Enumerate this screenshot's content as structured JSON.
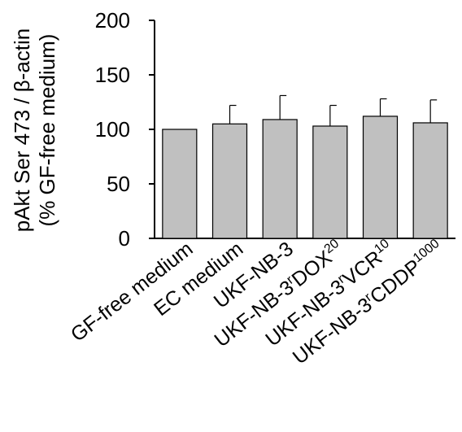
{
  "chart_data": {
    "type": "bar",
    "ylabel_line1": "pAkt Ser 473 / β-actin",
    "ylabel_line2": "(% GF-free medium)",
    "ylim": [
      0,
      200
    ],
    "yticks": [
      "0",
      "50",
      "100",
      "150",
      "200"
    ],
    "categories": [
      {
        "base": "GF-free medium",
        "sup_r": "",
        "mid": "",
        "sup": ""
      },
      {
        "base": "EC medium",
        "sup_r": "",
        "mid": "",
        "sup": ""
      },
      {
        "base": "UKF-NB-3",
        "sup_r": "",
        "mid": "",
        "sup": ""
      },
      {
        "base": "UKF-NB-3",
        "sup_r": "r",
        "mid": "DOX",
        "sup": "20"
      },
      {
        "base": "UKF-NB-3",
        "sup_r": "r",
        "mid": "VCR",
        "sup": "10"
      },
      {
        "base": "UKF-NB-3",
        "sup_r": "r",
        "mid": "CDDP",
        "sup": "1000"
      }
    ],
    "values": [
      100,
      105,
      109,
      103,
      112,
      106
    ],
    "errors": [
      0,
      17,
      22,
      19,
      16,
      21
    ],
    "bar_color": "#c0c0c0",
    "grid": false
  }
}
